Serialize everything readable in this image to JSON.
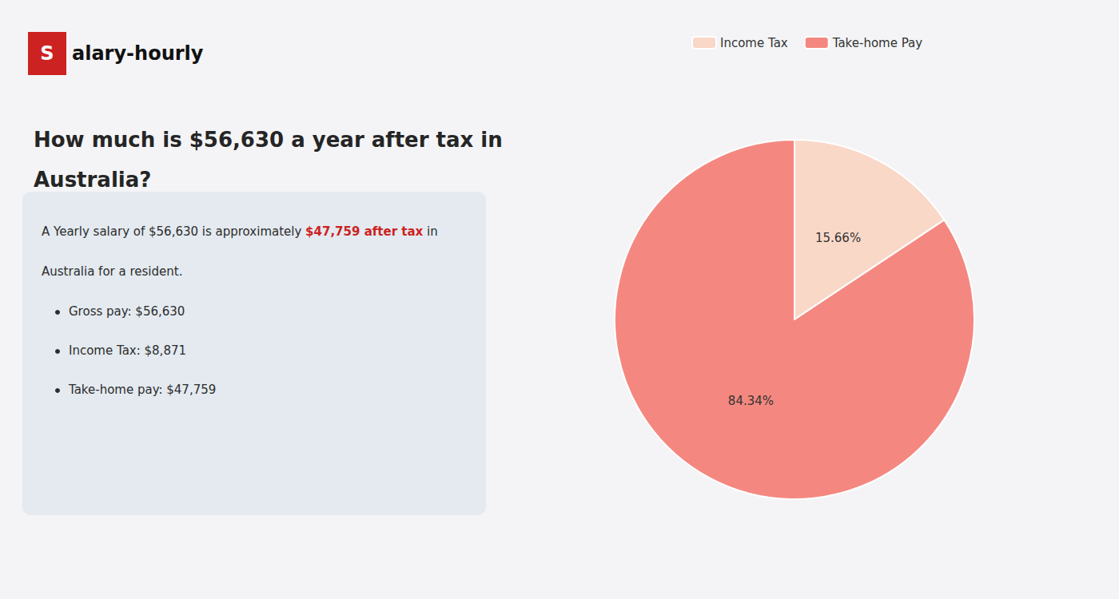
{
  "chart_data": {
    "type": "pie",
    "title": "How much is $56,630 a year after tax in\nAustralia?",
    "categories": [
      "Income Tax",
      "Take-home Pay"
    ],
    "values": [
      15.66,
      84.34
    ],
    "value_labels": [
      "15.66%",
      "84.34%"
    ],
    "colors": [
      "#f9d8c8",
      "#f48880"
    ],
    "data_labels": true,
    "legend": "top",
    "annotations": [
      {
        "text": "S",
        "color": "#cc2222"
      },
      {
        "text": "alary-hourly"
      },
      {
        "text": "A Yearly salary of $56,630 is approximately "
      },
      {
        "text": "$47,759 after tax",
        "color": "#cc2222"
      },
      {
        "text": " in"
      },
      {
        "text": "Australia for a resident."
      },
      {
        "text": "Gross pay: $56,630"
      },
      {
        "text": "Income Tax: $8,871"
      },
      {
        "text": "Take-home pay: $47,759"
      }
    ]
  }
}
